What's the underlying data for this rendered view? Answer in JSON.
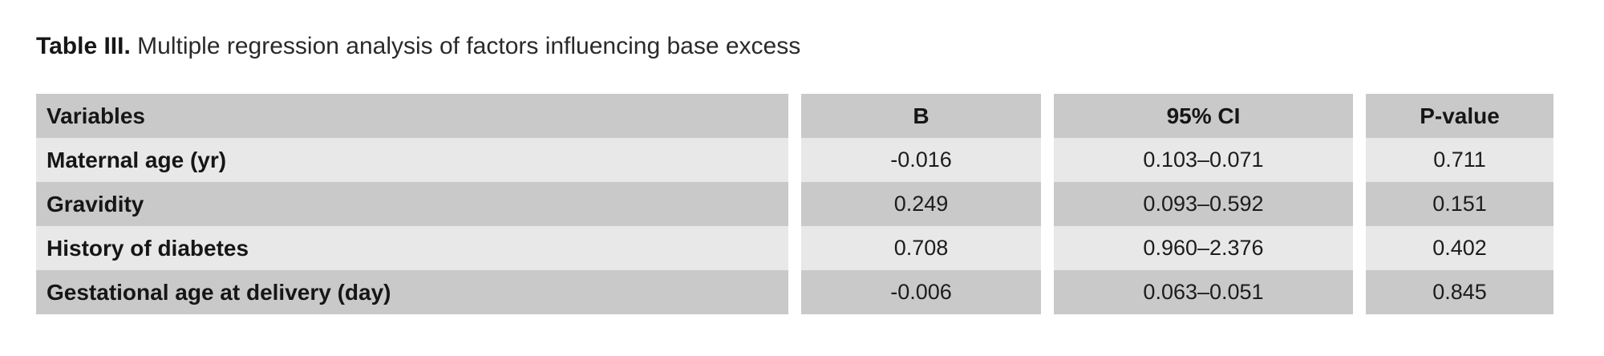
{
  "title": {
    "label": "Table III.",
    "text": "Multiple regression analysis of factors influencing base excess"
  },
  "table": {
    "columns": [
      "Variables",
      "B",
      "95% CI",
      "P-value"
    ],
    "rows": [
      {
        "variable": "Maternal age (yr)",
        "b": "-0.016",
        "ci": "0.103–0.071",
        "p": "0.711"
      },
      {
        "variable": "Gravidity",
        "b": "0.249",
        "ci": "0.093–0.592",
        "p": "0.151"
      },
      {
        "variable": "History of diabetes",
        "b": "0.708",
        "ci": "0.960–2.376",
        "p": "0.402"
      },
      {
        "variable": "Gestational age at delivery (day)",
        "b": "-0.006",
        "ci": "0.063–0.051",
        "p": "0.845"
      }
    ]
  },
  "colors": {
    "row_dark": "#c9c9c9",
    "row_light": "#e8e8e8",
    "background": "#ffffff",
    "text": "#1c1c1c"
  }
}
